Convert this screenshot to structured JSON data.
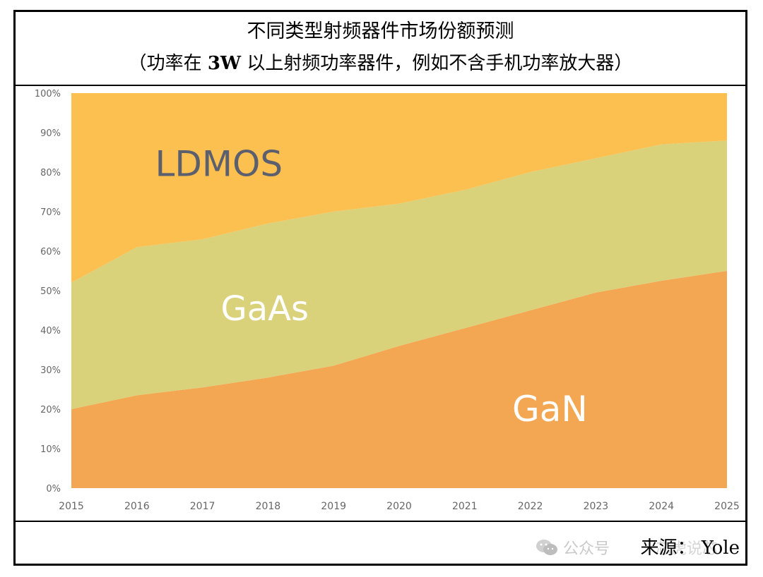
{
  "title": "不同类型射频器件市场份额预测",
  "subtitle_parts": {
    "prefix": "（功率在 ",
    "bold": "3W",
    "suffix": " 以上射频功率器件，例如不含手机功率放大器）"
  },
  "source": "来源： Yole",
  "watermark": {
    "text": "公众号",
    "text2": "芯虎说芯",
    "icon": "wechat-icon"
  },
  "colors": {
    "ldmos": "#fbc04f",
    "gaas": "#d9d27b",
    "gan": "#f4a752",
    "ldmos_label": "#5c5f6e",
    "gaas_label": "#ffffff",
    "gan_label": "#ffffff",
    "axis_text": "#666666"
  },
  "chart_data": {
    "type": "area",
    "stacked": true,
    "x": [
      "2015",
      "2016",
      "2017",
      "2018",
      "2019",
      "2020",
      "2021",
      "2022",
      "2023",
      "2024",
      "2025"
    ],
    "ylim": [
      0,
      100
    ],
    "yticks": [
      "0%",
      "10%",
      "20%",
      "30%",
      "40%",
      "50%",
      "60%",
      "70%",
      "80%",
      "90%",
      "100%"
    ],
    "series": [
      {
        "name": "GaN",
        "values": [
          20,
          23.5,
          25.5,
          28,
          31,
          36,
          40.5,
          45,
          49.5,
          52.5,
          55
        ]
      },
      {
        "name": "GaAs",
        "values": [
          32,
          37.5,
          37.5,
          39,
          39,
          36,
          35,
          35,
          34,
          34.5,
          33
        ]
      },
      {
        "name": "LDMOS",
        "values": [
          48,
          39,
          37,
          33,
          30,
          28,
          24.5,
          20,
          16.5,
          13,
          12
        ]
      }
    ],
    "labels": [
      {
        "text": "LDMOS",
        "series": "LDMOS",
        "at_x": 2017.25,
        "at_y": 79
      },
      {
        "text": "GaAs",
        "series": "GaAs",
        "at_x": 2017.95,
        "at_y": 42.5
      },
      {
        "text": "GaN",
        "series": "GaN",
        "at_x": 2022.3,
        "at_y": 17
      }
    ],
    "grid": false,
    "legend": "none"
  }
}
